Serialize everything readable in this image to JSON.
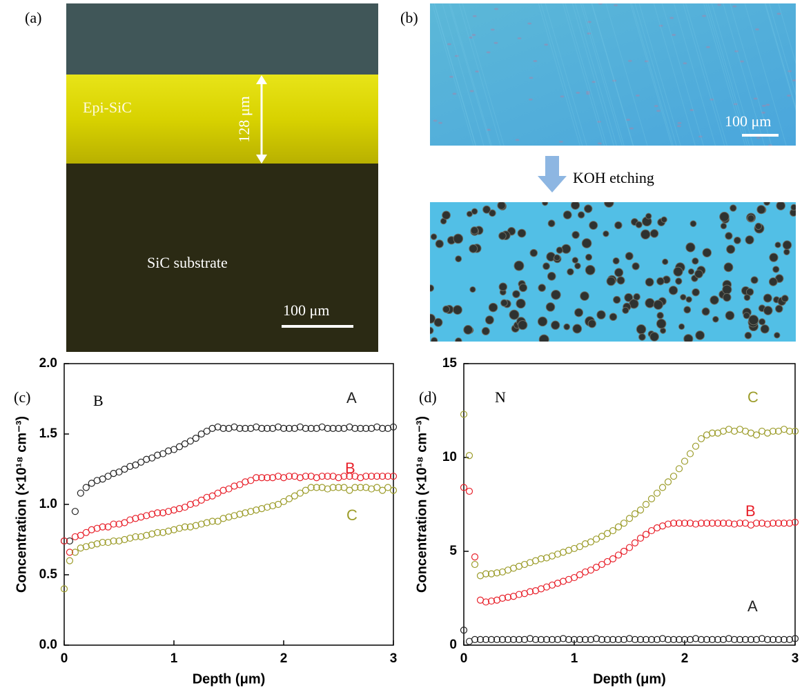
{
  "panels": {
    "a": {
      "label": "(a)",
      "layer_label": "Epi-SiC",
      "thickness": "128 μm",
      "substrate_label": "SiC substrate",
      "scale_bar": "100 μm"
    },
    "b": {
      "label": "(b)",
      "scale_bar": "100 μm",
      "process": "KOH etching"
    }
  },
  "chart_data": [
    {
      "type": "scatter",
      "panel_label": "(c)",
      "annotation": "B",
      "xlabel": "Depth (μm)",
      "ylabel": "Concentration (×10¹⁸ cm⁻³)",
      "xlim": [
        0,
        3
      ],
      "xticks": [
        0,
        1,
        2,
        3
      ],
      "ylim": [
        0,
        2
      ],
      "yticks": [
        {
          "value": 0,
          "label": "0.0"
        },
        0.5,
        {
          "value": 1,
          "label": "1.0"
        },
        1.5,
        {
          "value": 2,
          "label": "2.0"
        }
      ],
      "x": [
        0,
        0.05,
        0.1,
        0.15,
        0.2,
        0.25,
        0.3,
        0.35,
        0.4,
        0.45,
        0.5,
        0.55,
        0.6,
        0.65,
        0.7,
        0.75,
        0.8,
        0.85,
        0.9,
        0.95,
        1,
        1.05,
        1.1,
        1.15,
        1.2,
        1.25,
        1.3,
        1.35,
        1.4,
        1.45,
        1.5,
        1.55,
        1.6,
        1.65,
        1.7,
        1.75,
        1.8,
        1.85,
        1.9,
        1.95,
        2,
        2.05,
        2.1,
        2.15,
        2.2,
        2.25,
        2.3,
        2.35,
        2.4,
        2.45,
        2.5,
        2.55,
        2.6,
        2.65,
        2.7,
        2.75,
        2.8,
        2.85,
        2.9,
        2.95,
        3
      ],
      "series": [
        {
          "name": "A",
          "color": "#222222",
          "values": [
            0.74,
            0.74,
            0.95,
            1.08,
            1.12,
            1.15,
            1.17,
            1.18,
            1.2,
            1.22,
            1.23,
            1.25,
            1.27,
            1.28,
            1.3,
            1.32,
            1.33,
            1.35,
            1.36,
            1.38,
            1.39,
            1.41,
            1.43,
            1.45,
            1.47,
            1.5,
            1.52,
            1.54,
            1.55,
            1.54,
            1.54,
            1.55,
            1.54,
            1.54,
            1.54,
            1.55,
            1.54,
            1.54,
            1.54,
            1.55,
            1.54,
            1.54,
            1.54,
            1.55,
            1.54,
            1.54,
            1.54,
            1.55,
            1.54,
            1.54,
            1.54,
            1.54,
            1.55,
            1.54,
            1.54,
            1.54,
            1.54,
            1.55,
            1.54,
            1.54,
            1.55
          ]
        },
        {
          "name": "B",
          "color": "#e8202a",
          "values": [
            0.74,
            0.66,
            0.77,
            0.78,
            0.8,
            0.82,
            0.83,
            0.84,
            0.84,
            0.86,
            0.86,
            0.87,
            0.89,
            0.9,
            0.91,
            0.92,
            0.93,
            0.94,
            0.94,
            0.95,
            0.96,
            0.97,
            0.98,
            1.0,
            1.01,
            1.03,
            1.05,
            1.06,
            1.08,
            1.1,
            1.11,
            1.13,
            1.14,
            1.16,
            1.17,
            1.19,
            1.19,
            1.19,
            1.19,
            1.2,
            1.19,
            1.2,
            1.2,
            1.19,
            1.2,
            1.2,
            1.19,
            1.2,
            1.2,
            1.2,
            1.19,
            1.2,
            1.2,
            1.2,
            1.19,
            1.2,
            1.2,
            1.2,
            1.2,
            1.2,
            1.2
          ]
        },
        {
          "name": "C",
          "color": "#9c9c2a",
          "values": [
            0.4,
            0.6,
            0.66,
            0.69,
            0.7,
            0.71,
            0.72,
            0.73,
            0.73,
            0.74,
            0.74,
            0.75,
            0.76,
            0.77,
            0.77,
            0.78,
            0.79,
            0.8,
            0.8,
            0.81,
            0.82,
            0.83,
            0.84,
            0.84,
            0.85,
            0.86,
            0.87,
            0.88,
            0.88,
            0.9,
            0.91,
            0.92,
            0.93,
            0.94,
            0.95,
            0.96,
            0.97,
            0.98,
            0.99,
            1.0,
            1.02,
            1.04,
            1.06,
            1.08,
            1.1,
            1.12,
            1.12,
            1.12,
            1.11,
            1.12,
            1.12,
            1.12,
            1.1,
            1.12,
            1.12,
            1.12,
            1.11,
            1.12,
            1.1,
            1.12,
            1.1
          ]
        }
      ]
    },
    {
      "type": "scatter",
      "panel_label": "(d)",
      "annotation": "N",
      "xlabel": "Depth (μm)",
      "ylabel": "Concentration (×10¹⁸ cm⁻³)",
      "xlim": [
        0,
        3
      ],
      "xticks": [
        0,
        1,
        2,
        3
      ],
      "ylim": [
        0,
        15
      ],
      "yticks": [
        0,
        5,
        10,
        15
      ],
      "x": [
        0,
        0.05,
        0.1,
        0.15,
        0.2,
        0.25,
        0.3,
        0.35,
        0.4,
        0.45,
        0.5,
        0.55,
        0.6,
        0.65,
        0.7,
        0.75,
        0.8,
        0.85,
        0.9,
        0.95,
        1,
        1.05,
        1.1,
        1.15,
        1.2,
        1.25,
        1.3,
        1.35,
        1.4,
        1.45,
        1.5,
        1.55,
        1.6,
        1.65,
        1.7,
        1.75,
        1.8,
        1.85,
        1.9,
        1.95,
        2,
        2.05,
        2.1,
        2.15,
        2.2,
        2.25,
        2.3,
        2.35,
        2.4,
        2.45,
        2.5,
        2.55,
        2.6,
        2.65,
        2.7,
        2.75,
        2.8,
        2.85,
        2.9,
        2.95,
        3
      ],
      "series": [
        {
          "name": "A",
          "color": "#222222",
          "values": [
            0.8,
            0.2,
            0.3,
            0.3,
            0.3,
            0.3,
            0.3,
            0.3,
            0.3,
            0.3,
            0.3,
            0.3,
            0.35,
            0.3,
            0.3,
            0.3,
            0.3,
            0.3,
            0.35,
            0.3,
            0.3,
            0.3,
            0.3,
            0.3,
            0.35,
            0.3,
            0.3,
            0.3,
            0.3,
            0.3,
            0.35,
            0.3,
            0.3,
            0.3,
            0.3,
            0.3,
            0.35,
            0.3,
            0.3,
            0.3,
            0.3,
            0.3,
            0.35,
            0.3,
            0.3,
            0.3,
            0.3,
            0.3,
            0.35,
            0.3,
            0.3,
            0.3,
            0.3,
            0.3,
            0.35,
            0.3,
            0.3,
            0.3,
            0.3,
            0.3,
            0.35
          ]
        },
        {
          "name": "B",
          "color": "#e8202a",
          "values": [
            8.4,
            8.2,
            4.7,
            2.4,
            2.3,
            2.35,
            2.4,
            2.5,
            2.55,
            2.6,
            2.7,
            2.75,
            2.85,
            2.9,
            3.0,
            3.1,
            3.2,
            3.3,
            3.4,
            3.5,
            3.6,
            3.75,
            3.9,
            4.0,
            4.15,
            4.3,
            4.45,
            4.6,
            4.8,
            5.0,
            5.2,
            5.45,
            5.7,
            5.9,
            6.1,
            6.25,
            6.35,
            6.45,
            6.5,
            6.5,
            6.5,
            6.5,
            6.45,
            6.5,
            6.5,
            6.5,
            6.5,
            6.5,
            6.5,
            6.45,
            6.5,
            6.5,
            6.4,
            6.5,
            6.5,
            6.45,
            6.5,
            6.5,
            6.5,
            6.5,
            6.55
          ]
        },
        {
          "name": "C",
          "color": "#9c9c2a",
          "values": [
            12.3,
            10.1,
            4.3,
            3.7,
            3.8,
            3.8,
            3.85,
            3.9,
            4.0,
            4.1,
            4.2,
            4.3,
            4.4,
            4.5,
            4.6,
            4.65,
            4.75,
            4.85,
            4.95,
            5.05,
            5.15,
            5.25,
            5.4,
            5.5,
            5.65,
            5.8,
            5.95,
            6.1,
            6.3,
            6.5,
            6.75,
            7.0,
            7.2,
            7.5,
            7.8,
            8.1,
            8.4,
            8.7,
            9.0,
            9.4,
            9.8,
            10.2,
            10.6,
            11.0,
            11.2,
            11.3,
            11.3,
            11.4,
            11.5,
            11.4,
            11.5,
            11.4,
            11.3,
            11.2,
            11.4,
            11.3,
            11.4,
            11.4,
            11.5,
            11.4,
            11.4
          ]
        }
      ]
    }
  ]
}
